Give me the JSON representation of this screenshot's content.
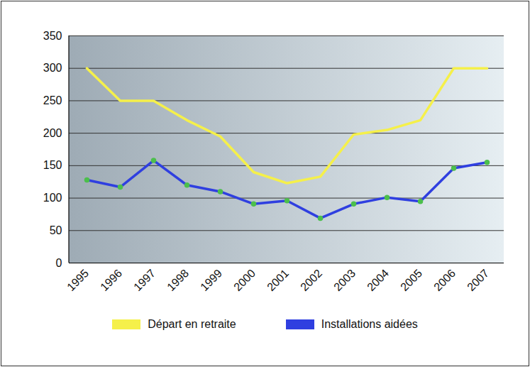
{
  "chart_data": {
    "type": "line",
    "categories": [
      "1995",
      "1996",
      "1997",
      "1998",
      "1999",
      "2000",
      "2001",
      "2002",
      "2003",
      "2004",
      "2005",
      "2006",
      "2007"
    ],
    "series": [
      {
        "name": "Départ en retraite",
        "color": "#f5f04a",
        "marker": "none",
        "values": [
          300,
          250,
          250,
          220,
          195,
          140,
          123,
          133,
          198,
          205,
          220,
          300,
          300
        ]
      },
      {
        "name": "Installations aidées",
        "color": "#2f3fe0",
        "marker": "circle",
        "values": [
          128,
          117,
          158,
          120,
          110,
          91,
          96,
          69,
          91,
          101,
          95,
          146,
          155
        ]
      }
    ],
    "ylim": [
      0,
      350
    ],
    "yticks": [
      0,
      50,
      100,
      150,
      200,
      250,
      300,
      350
    ],
    "grid": true,
    "legend": "bottom"
  }
}
